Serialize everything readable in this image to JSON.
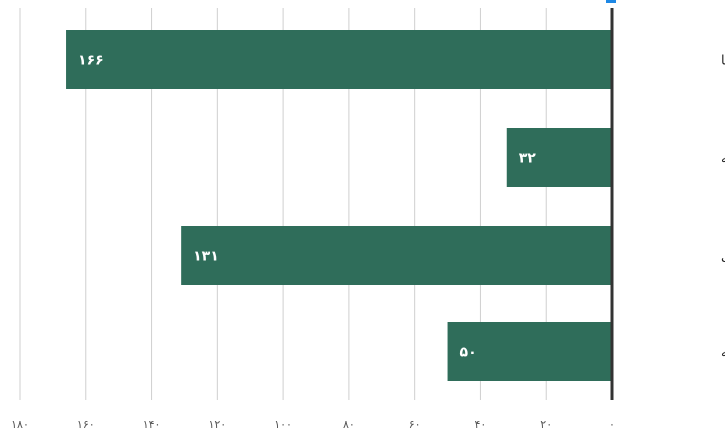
{
  "chart_data": {
    "type": "bar",
    "orientation": "horizontal",
    "direction": "right-to-left",
    "categories": [
      "پژوهش اعضا",
      "پایان نامه",
      "اقدام پژوهی",
      "مقاله"
    ],
    "values": [
      166,
      32,
      131,
      50
    ],
    "value_labels": [
      "۱۶۶",
      "۳۲",
      "۱۳۱",
      "۵۰"
    ],
    "xlim": [
      0,
      180
    ],
    "ticks": [
      0,
      20,
      40,
      60,
      80,
      100,
      120,
      140,
      160,
      180
    ],
    "tick_labels": [
      "۰",
      "۲۰",
      "۴۰",
      "۶۰",
      "۸۰",
      "۱۰۰",
      "۱۲۰",
      "۱۴۰",
      "۱۶۰",
      "۱۸۰"
    ],
    "bar_color": "#2f6d5a",
    "grid": true,
    "legend": "none"
  }
}
